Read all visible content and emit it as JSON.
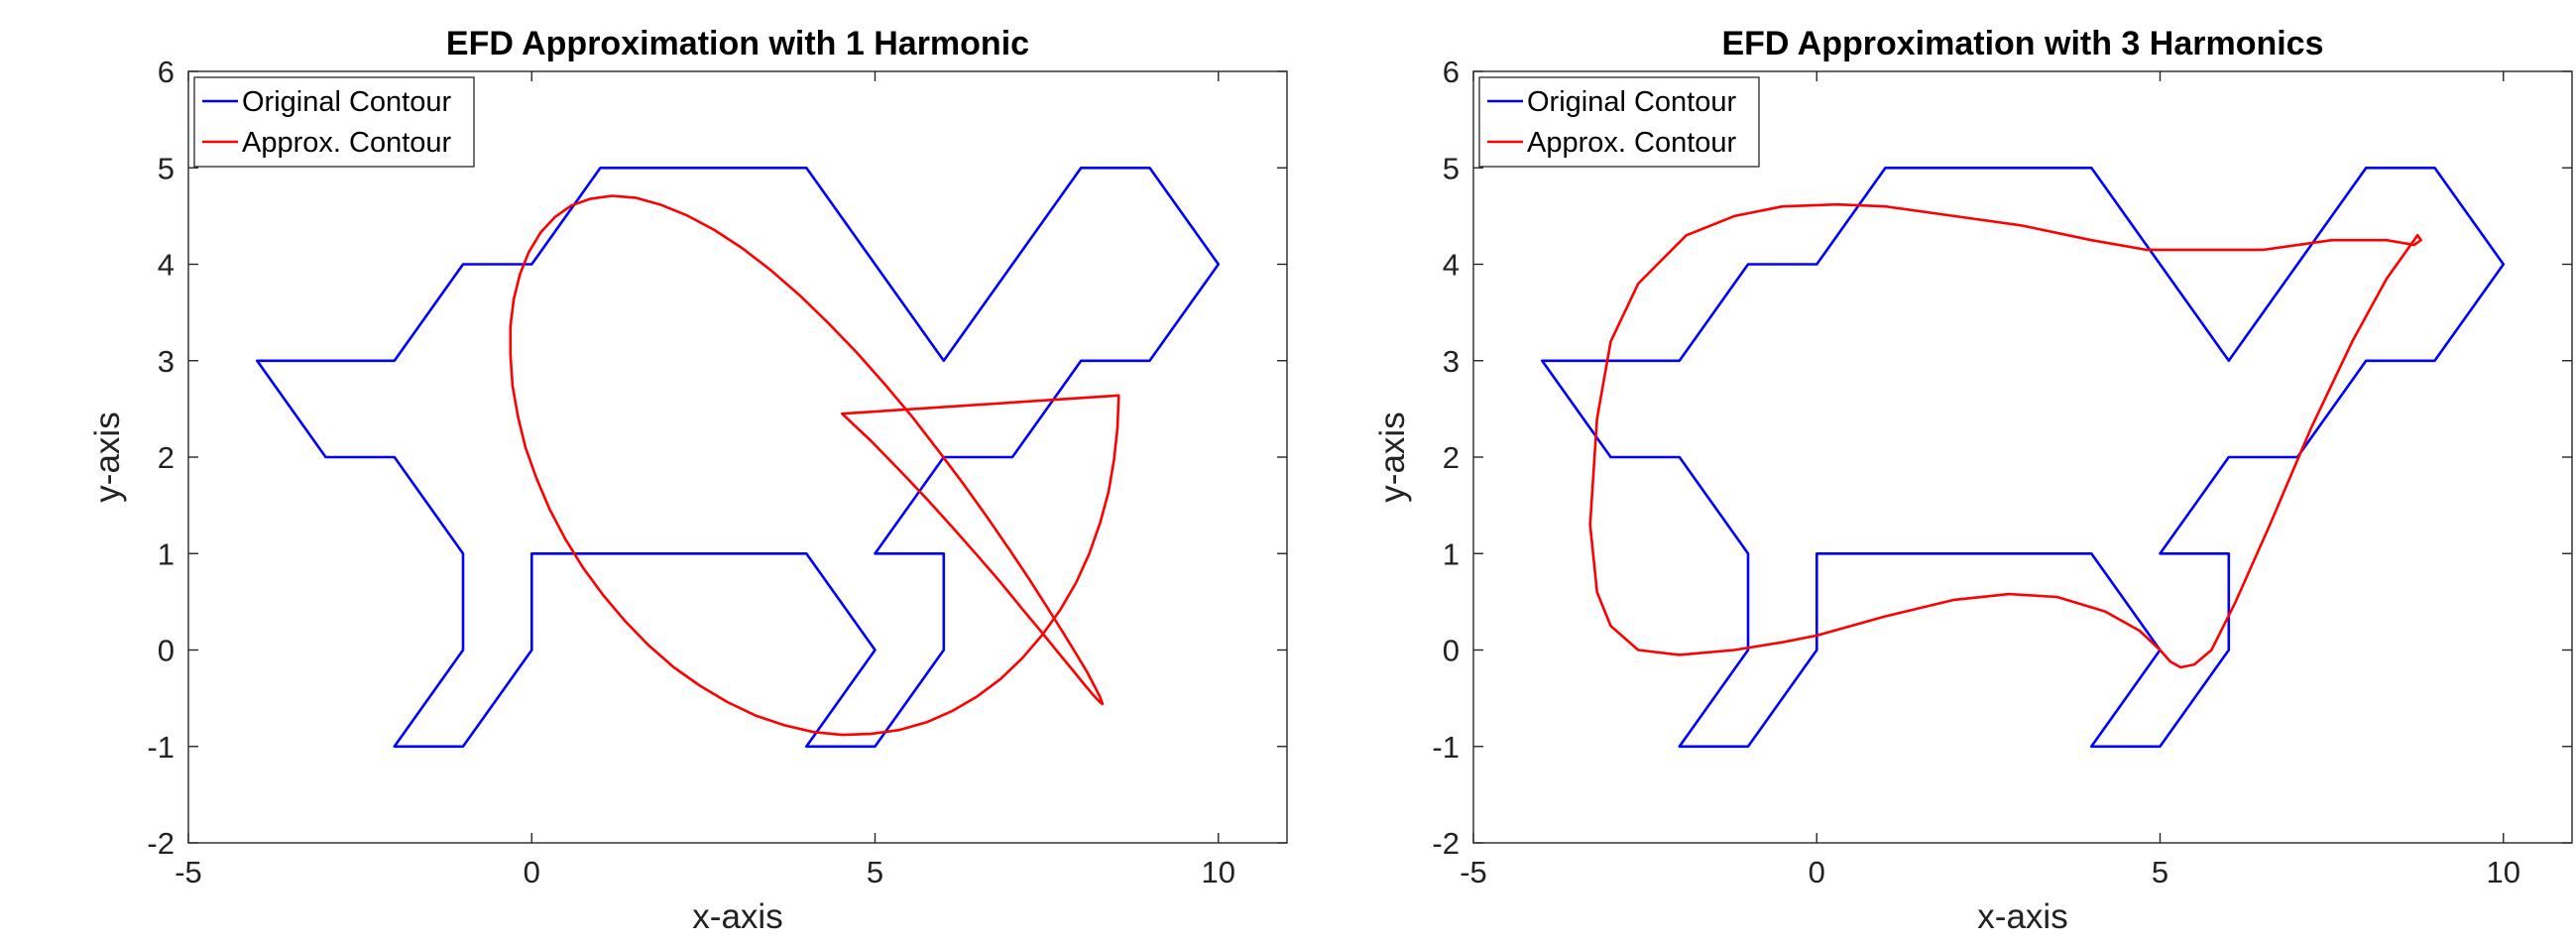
{
  "chart_data": [
    {
      "type": "line",
      "title": "EFD Approximation with 1 Harmonic",
      "xlabel": "x-axis",
      "ylabel": "y-axis",
      "xlim": [
        -5,
        11
      ],
      "ylim": [
        -2,
        6
      ],
      "xticks": [
        -5,
        0,
        5,
        10
      ],
      "yticks": [
        -2,
        -1,
        0,
        1,
        2,
        3,
        4,
        5,
        6
      ],
      "xtick_labels": [
        "-5",
        "0",
        "5",
        "10"
      ],
      "ytick_labels": [
        "-2",
        "-1",
        "0",
        "1",
        "2",
        "3",
        "4",
        "5",
        "6"
      ],
      "grid": false,
      "legend_position": "top-left",
      "series": [
        {
          "name": "Original Contour",
          "color": "#0000ff",
          "x": [
            -4,
            -2,
            -1,
            0,
            1,
            4,
            6,
            8,
            9,
            10,
            9,
            8,
            7,
            6,
            5,
            6,
            6,
            5,
            4,
            5,
            4,
            0,
            0,
            -1,
            -2,
            -1,
            -1,
            -2,
            -3,
            -4
          ],
          "y": [
            3,
            3,
            4,
            4,
            5,
            5,
            3,
            5,
            5,
            4,
            3,
            3,
            2,
            2,
            1,
            1,
            0,
            -1,
            -1,
            0,
            1,
            1,
            0,
            -1,
            -1,
            0,
            1,
            2,
            2,
            3
          ]
        },
        {
          "name": "Approx. Contour",
          "color": "#ff0000",
          "x": [
            8.55,
            8.53,
            8.48,
            8.4,
            8.28,
            8.12,
            7.93,
            7.7,
            7.44,
            7.15,
            6.83,
            6.49,
            6.13,
            5.75,
            5.35,
            4.94,
            4.52,
            4.1,
            3.68,
            3.26,
            2.85,
            2.45,
            2.07,
            1.7,
            1.36,
            1.04,
            0.75,
            0.49,
            0.26,
            0.07,
            -0.09,
            -0.2,
            -0.28,
            -0.31,
            -0.31,
            -0.26,
            -0.17,
            -0.04,
            0.13,
            0.34,
            0.58,
            0.86,
            1.17,
            1.51,
            1.87,
            2.25,
            2.65,
            3.06,
            3.48,
            3.9,
            4.32,
            4.74,
            5.15,
            5.55,
            5.93,
            6.3,
            6.64,
            6.96,
            7.25,
            7.51,
            7.74,
            7.93,
            8.09,
            8.2,
            8.28,
            8.31,
            8.31,
            8.26,
            8.17,
            8.04,
            7.87,
            7.66,
            7.42,
            7.14,
            6.83,
            6.49,
            6.13,
            5.75,
            5.35,
            4.94,
            4.52
          ],
          "y": [
            2.64,
            2.3,
            1.97,
            1.64,
            1.32,
            1.0,
            0.7,
            0.42,
            0.16,
            -0.08,
            -0.3,
            -0.48,
            -0.63,
            -0.75,
            -0.83,
            -0.87,
            -0.88,
            -0.85,
            -0.78,
            -0.68,
            -0.54,
            -0.37,
            -0.18,
            0.05,
            0.3,
            0.57,
            0.85,
            1.15,
            1.46,
            1.78,
            2.1,
            2.42,
            2.74,
            3.06,
            3.36,
            3.64,
            3.9,
            4.13,
            4.33,
            4.49,
            4.61,
            4.68,
            4.71,
            4.69,
            4.62,
            4.51,
            4.36,
            4.17,
            3.94,
            3.68,
            3.39,
            3.08,
            2.75,
            2.41,
            2.06,
            1.71,
            1.37,
            1.04,
            0.73,
            0.44,
            0.18,
            -0.04,
            -0.23,
            -0.38,
            -0.49,
            -0.55,
            -0.56,
            -0.53,
            -0.46,
            -0.35,
            -0.2,
            -0.02,
            0.19,
            0.43,
            0.7,
            0.98,
            1.27,
            1.57,
            1.87,
            2.17,
            2.45
          ]
        }
      ]
    },
    {
      "type": "line",
      "title": "EFD Approximation with 3 Harmonics",
      "xlabel": "x-axis",
      "ylabel": "y-axis",
      "xlim": [
        -5,
        11
      ],
      "ylim": [
        -2,
        6
      ],
      "xticks": [
        -5,
        0,
        5,
        10
      ],
      "yticks": [
        -2,
        -1,
        0,
        1,
        2,
        3,
        4,
        5,
        6
      ],
      "xtick_labels": [
        "-5",
        "0",
        "5",
        "10"
      ],
      "ytick_labels": [
        "-2",
        "-1",
        "0",
        "1",
        "2",
        "3",
        "4",
        "5",
        "6"
      ],
      "grid": false,
      "legend_position": "top-left",
      "series": [
        {
          "name": "Original Contour",
          "color": "#0000ff",
          "x": [
            -4,
            -2,
            -1,
            0,
            1,
            4,
            6,
            8,
            9,
            10,
            9,
            8,
            7,
            6,
            5,
            6,
            6,
            5,
            4,
            5,
            4,
            0,
            0,
            -1,
            -2,
            -1,
            -1,
            -2,
            -3,
            -4
          ],
          "y": [
            3,
            3,
            4,
            4,
            5,
            5,
            3,
            5,
            5,
            4,
            3,
            3,
            2,
            2,
            1,
            1,
            0,
            -1,
            -1,
            0,
            1,
            1,
            0,
            -1,
            -1,
            0,
            1,
            2,
            2,
            3
          ]
        },
        {
          "name": "Approx. Contour",
          "color": "#ff0000",
          "x": [
            0.0,
            1.0,
            2.0,
            2.8,
            3.5,
            4.2,
            4.7,
            5.0,
            5.15,
            5.3,
            5.5,
            5.75,
            6.1,
            6.6,
            7.2,
            7.8,
            8.3,
            8.6,
            8.75,
            8.8,
            8.7,
            8.3,
            7.5,
            6.5,
            5.5,
            4.8,
            4.0,
            3.0,
            2.0,
            1.0,
            0.3,
            -0.5,
            -1.2,
            -1.9,
            -2.6,
            -3.0,
            -3.2,
            -3.3,
            -3.2,
            -3.0,
            -2.6,
            -2.0,
            -1.2,
            -0.5,
            0.0
          ],
          "y": [
            0.15,
            0.35,
            0.52,
            0.58,
            0.55,
            0.4,
            0.2,
            0.0,
            -0.12,
            -0.18,
            -0.15,
            0.0,
            0.5,
            1.3,
            2.3,
            3.2,
            3.85,
            4.15,
            4.3,
            4.25,
            4.2,
            4.25,
            4.25,
            4.15,
            4.15,
            4.15,
            4.25,
            4.4,
            4.5,
            4.6,
            4.62,
            4.6,
            4.5,
            4.3,
            3.8,
            3.2,
            2.4,
            1.3,
            0.6,
            0.25,
            0.0,
            -0.05,
            0.0,
            0.08,
            0.15
          ]
        }
      ]
    }
  ]
}
